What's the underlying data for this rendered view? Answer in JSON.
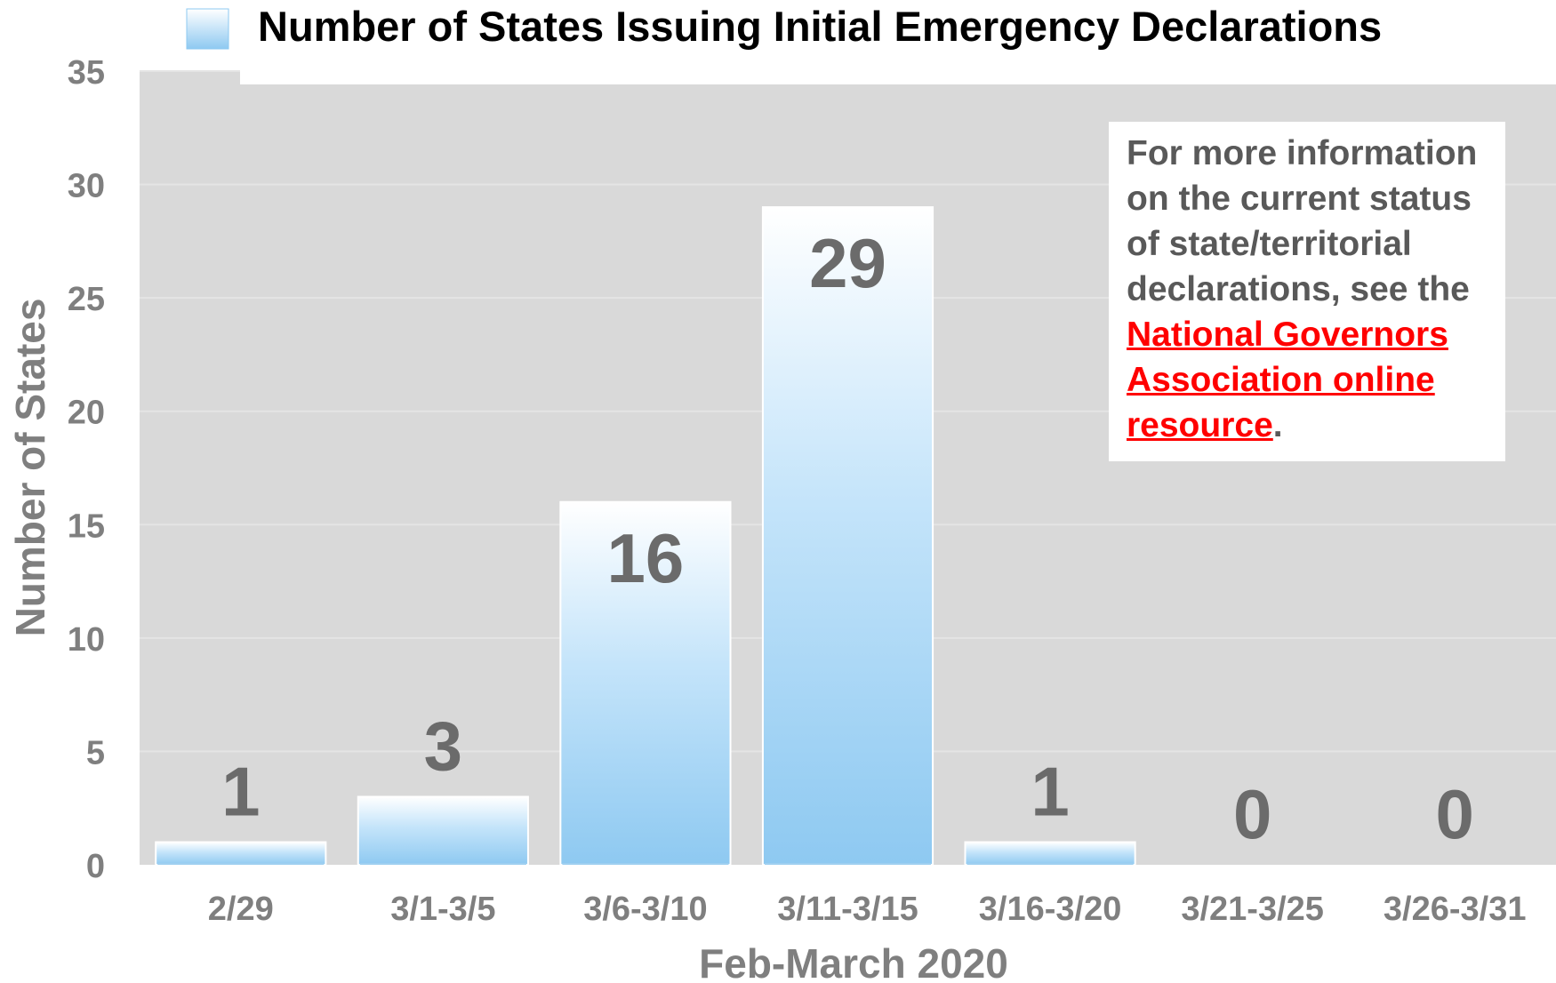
{
  "chart_data": {
    "type": "bar",
    "title": "",
    "xlabel": "Feb-March 2020",
    "ylabel": "Number of States",
    "ylim": [
      0,
      35
    ],
    "yticks": [
      0,
      5,
      10,
      15,
      20,
      25,
      30,
      35
    ],
    "categories": [
      "2/29",
      "3/1-3/5",
      "3/6-3/10",
      "3/11-3/15",
      "3/16-3/20",
      "3/21-3/25",
      "3/26-3/31"
    ],
    "series": [
      {
        "name": "Number of States Issuing Initial Emergency Declarations",
        "values": [
          1,
          3,
          16,
          29,
          1,
          0,
          0
        ]
      }
    ],
    "data_labels": [
      "1",
      "3",
      "16",
      "29",
      "1",
      "0",
      "0"
    ],
    "legend_position": "top",
    "grid": true,
    "colors": {
      "plot_background": "#d9d9d9",
      "gridline": "#e4e4e4",
      "bar_top": "#ffffff",
      "bar_bottom": "#8ec9f1",
      "bar_border": "#ffffff",
      "tick_text": "#7f7f7f",
      "data_label_text": "#6b6b6b",
      "legend_text": "#000000",
      "link": "#ff0000"
    }
  },
  "note": {
    "text_before": "For more information on the current status of state/territorial declarations, see the ",
    "link_text": "National Governors Association online resource",
    "text_after": "."
  }
}
